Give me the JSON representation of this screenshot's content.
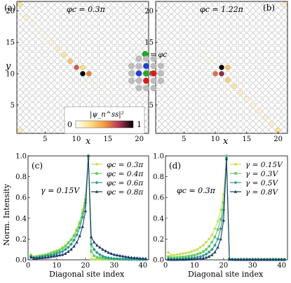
{
  "colors": {
    "series_a": "#c9e05a",
    "series_b": "#66cc66",
    "series_c": "#2a9d8f",
    "series_d": "#1f3a6b",
    "cmap_low": "#ffffff",
    "cmap_mid1": "#fde08a",
    "cmap_mid2": "#f39a3c",
    "cmap_mid3": "#b5375a",
    "cmap_high": "#000000",
    "empty_site": "#ffffff",
    "site_edge": "#9a9a9a",
    "inset_gray": "#bdbdbd",
    "inset_green": "#22aa22",
    "inset_blue": "#1f3fd6",
    "inset_red": "#e01818"
  },
  "panels": {
    "a": {
      "tag": "(a)",
      "phi": "φc = 0.3π"
    },
    "b": {
      "tag": "(b)",
      "phi": "φc = 1.22π"
    },
    "c": {
      "tag": "(c)",
      "param": "γ = 0.15V"
    },
    "d": {
      "tag": "(d)",
      "param": "φc = 0.3π"
    }
  },
  "inset": {
    "label": "= φc"
  },
  "colorbar": {
    "label": "|ψ_n^ss|²",
    "min_label": "0",
    "max_label": "1"
  },
  "chart_data": [
    {
      "panel": "a",
      "type": "heatmap",
      "title": "",
      "xlabel": "x",
      "ylabel": "y",
      "x_ticks": [
        "5",
        "10",
        "15",
        "20"
      ],
      "y_ticks": [
        "5",
        "10",
        "15",
        "20"
      ],
      "grid_size": 21,
      "colorbar_range": [
        0,
        1
      ],
      "bright_sites": [
        {
          "x": 11,
          "y": 10,
          "v": 1.0
        },
        {
          "x": 12,
          "y": 10,
          "v": 0.55
        },
        {
          "x": 10,
          "y": 11,
          "v": 0.65
        },
        {
          "x": 11,
          "y": 11,
          "v": 0.25
        },
        {
          "x": 9,
          "y": 12,
          "v": 0.35
        },
        {
          "x": 8,
          "y": 13,
          "v": 0.2
        },
        {
          "x": 7,
          "y": 14,
          "v": 0.12
        },
        {
          "x": 6,
          "y": 15,
          "v": 0.08
        },
        {
          "x": 5,
          "y": 16,
          "v": 0.05
        },
        {
          "x": 4,
          "y": 17,
          "v": 0.04
        },
        {
          "x": 3,
          "y": 18,
          "v": 0.06
        },
        {
          "x": 2,
          "y": 19,
          "v": 0.1
        },
        {
          "x": 1,
          "y": 21,
          "v": 0.22
        },
        {
          "x": 12,
          "y": 9,
          "v": 0.05
        },
        {
          "x": 13,
          "y": 8,
          "v": 0.03
        },
        {
          "x": 14,
          "y": 7,
          "v": 0.02
        },
        {
          "x": 1,
          "y": 1,
          "v": 0.15
        }
      ]
    },
    {
      "panel": "b",
      "type": "heatmap",
      "title": "",
      "xlabel": "x",
      "ylabel": "",
      "x_ticks": [
        "5",
        "10",
        "15",
        "20"
      ],
      "y_ticks": [
        "5",
        "10",
        "15",
        "20"
      ],
      "grid_size": 21,
      "colorbar_range": [
        0,
        1
      ],
      "bright_sites": [
        {
          "x": 11,
          "y": 11,
          "v": 1.0
        },
        {
          "x": 10,
          "y": 10,
          "v": 0.6
        },
        {
          "x": 11,
          "y": 10,
          "v": 0.8
        },
        {
          "x": 12,
          "y": 11,
          "v": 0.35
        },
        {
          "x": 12,
          "y": 9,
          "v": 0.3
        },
        {
          "x": 13,
          "y": 8,
          "v": 0.2
        },
        {
          "x": 14,
          "y": 7,
          "v": 0.14
        },
        {
          "x": 15,
          "y": 6,
          "v": 0.1
        },
        {
          "x": 16,
          "y": 5,
          "v": 0.08
        },
        {
          "x": 17,
          "y": 4,
          "v": 0.08
        },
        {
          "x": 18,
          "y": 3,
          "v": 0.1
        },
        {
          "x": 19,
          "y": 2,
          "v": 0.12
        },
        {
          "x": 20,
          "y": 1,
          "v": 0.22
        },
        {
          "x": 9,
          "y": 12,
          "v": 0.05
        },
        {
          "x": 8,
          "y": 13,
          "v": 0.03
        },
        {
          "x": 21,
          "y": 21,
          "v": 0.12
        }
      ]
    },
    {
      "panel": "c",
      "type": "line",
      "title": "",
      "xlabel": "Diagonal site index",
      "ylabel": "Norm. Intensity",
      "xlim": [
        0,
        42
      ],
      "ylim": [
        0,
        1.0
      ],
      "x_ticks": [
        0,
        10,
        20,
        30,
        40
      ],
      "y_ticks": [
        0.0,
        0.2,
        0.4,
        0.6,
        0.8,
        1.0
      ],
      "legend_position": "top-right",
      "x": [
        1,
        2,
        3,
        4,
        5,
        6,
        7,
        8,
        9,
        10,
        11,
        12,
        13,
        14,
        15,
        16,
        17,
        18,
        19,
        20,
        21,
        22,
        23,
        24,
        25,
        26,
        27,
        28,
        29,
        30,
        31,
        32,
        33,
        34,
        35,
        36,
        37,
        38,
        39,
        40,
        41
      ],
      "series": [
        {
          "name": "φc = 0.3π",
          "values": [
            0.05,
            0.03,
            0.035,
            0.04,
            0.045,
            0.05,
            0.06,
            0.07,
            0.08,
            0.09,
            0.1,
            0.12,
            0.14,
            0.17,
            0.2,
            0.24,
            0.3,
            0.37,
            0.48,
            0.62,
            0.97,
            0.005,
            0.005,
            0.005,
            0.005,
            0.005,
            0.005,
            0.005,
            0.005,
            0.005,
            0.005,
            0.005,
            0.005,
            0.005,
            0.005,
            0.005,
            0.005,
            0.005,
            0.005,
            0.005,
            0.005
          ]
        },
        {
          "name": "φc = 0.4π",
          "values": [
            0.04,
            0.025,
            0.03,
            0.035,
            0.04,
            0.045,
            0.05,
            0.06,
            0.07,
            0.08,
            0.09,
            0.11,
            0.13,
            0.16,
            0.19,
            0.23,
            0.28,
            0.35,
            0.45,
            0.58,
            1.0,
            0.08,
            0.04,
            0.025,
            0.02,
            0.015,
            0.012,
            0.01,
            0.009,
            0.008,
            0.007,
            0.006,
            0.005,
            0.005,
            0.004,
            0.004,
            0.004,
            0.003,
            0.003,
            0.003,
            0.003
          ]
        },
        {
          "name": "φc = 0.6π",
          "values": [
            0.03,
            0.02,
            0.022,
            0.025,
            0.03,
            0.035,
            0.04,
            0.045,
            0.05,
            0.06,
            0.07,
            0.08,
            0.1,
            0.12,
            0.15,
            0.19,
            0.24,
            0.31,
            0.41,
            0.55,
            1.0,
            0.15,
            0.1,
            0.07,
            0.05,
            0.035,
            0.025,
            0.02,
            0.015,
            0.012,
            0.01,
            0.008,
            0.007,
            0.006,
            0.005,
            0.005,
            0.004,
            0.004,
            0.003,
            0.003,
            0.003
          ]
        },
        {
          "name": "φc = 0.8π",
          "values": [
            0.025,
            0.015,
            0.015,
            0.018,
            0.02,
            0.022,
            0.025,
            0.03,
            0.035,
            0.04,
            0.045,
            0.05,
            0.06,
            0.08,
            0.1,
            0.13,
            0.17,
            0.23,
            0.32,
            0.47,
            1.0,
            0.22,
            0.17,
            0.14,
            0.12,
            0.1,
            0.085,
            0.07,
            0.06,
            0.05,
            0.045,
            0.04,
            0.035,
            0.03,
            0.026,
            0.022,
            0.02,
            0.018,
            0.015,
            0.013,
            0.012
          ]
        }
      ]
    },
    {
      "panel": "d",
      "type": "line",
      "title": "",
      "xlabel": "Diagonal site index",
      "ylabel": "",
      "xlim": [
        0,
        42
      ],
      "ylim": [
        0,
        1.0
      ],
      "x_ticks": [
        0,
        10,
        20,
        30,
        40
      ],
      "y_ticks": [
        0.0,
        0.2,
        0.4,
        0.6,
        0.8,
        1.0
      ],
      "legend_position": "top-right",
      "x": [
        1,
        2,
        3,
        4,
        5,
        6,
        7,
        8,
        9,
        10,
        11,
        12,
        13,
        14,
        15,
        16,
        17,
        18,
        19,
        20,
        21,
        22,
        23,
        24,
        25,
        26,
        27,
        28,
        29,
        30,
        31,
        32,
        33,
        34,
        35,
        36,
        37,
        38,
        39,
        40,
        41
      ],
      "series": [
        {
          "name": "γ = 0.15V",
          "values": [
            0.07,
            0.045,
            0.045,
            0.05,
            0.055,
            0.06,
            0.065,
            0.07,
            0.08,
            0.09,
            0.1,
            0.12,
            0.14,
            0.17,
            0.2,
            0.24,
            0.3,
            0.37,
            0.48,
            0.63,
            0.98,
            0.005,
            0.005,
            0.005,
            0.005,
            0.005,
            0.005,
            0.005,
            0.005,
            0.005,
            0.005,
            0.005,
            0.005,
            0.005,
            0.005,
            0.005,
            0.005,
            0.005,
            0.005,
            0.005,
            0.005
          ]
        },
        {
          "name": "γ = 0.3V",
          "values": [
            0.03,
            0.02,
            0.02,
            0.022,
            0.025,
            0.028,
            0.03,
            0.035,
            0.04,
            0.045,
            0.055,
            0.065,
            0.08,
            0.1,
            0.13,
            0.17,
            0.22,
            0.29,
            0.39,
            0.55,
            1.0,
            0.01,
            0.005,
            0.005,
            0.005,
            0.005,
            0.005,
            0.005,
            0.005,
            0.005,
            0.005,
            0.005,
            0.005,
            0.005,
            0.005,
            0.005,
            0.005,
            0.005,
            0.005,
            0.005,
            0.005
          ]
        },
        {
          "name": "γ = 0.5V",
          "values": [
            0.01,
            0.006,
            0.006,
            0.007,
            0.008,
            0.01,
            0.012,
            0.014,
            0.017,
            0.02,
            0.025,
            0.03,
            0.04,
            0.055,
            0.075,
            0.1,
            0.14,
            0.2,
            0.3,
            0.48,
            0.98,
            0.006,
            0.004,
            0.003,
            0.003,
            0.003,
            0.003,
            0.003,
            0.003,
            0.003,
            0.003,
            0.003,
            0.003,
            0.003,
            0.003,
            0.003,
            0.003,
            0.003,
            0.003,
            0.003,
            0.003
          ]
        },
        {
          "name": "γ = 0.8V",
          "values": [
            0.003,
            0.002,
            0.002,
            0.002,
            0.003,
            0.003,
            0.004,
            0.005,
            0.006,
            0.007,
            0.009,
            0.012,
            0.016,
            0.022,
            0.032,
            0.048,
            0.075,
            0.12,
            0.2,
            0.38,
            0.97,
            0.004,
            0.003,
            0.002,
            0.002,
            0.002,
            0.002,
            0.002,
            0.002,
            0.002,
            0.002,
            0.002,
            0.002,
            0.002,
            0.002,
            0.002,
            0.002,
            0.002,
            0.002,
            0.002,
            0.002
          ]
        }
      ]
    }
  ]
}
